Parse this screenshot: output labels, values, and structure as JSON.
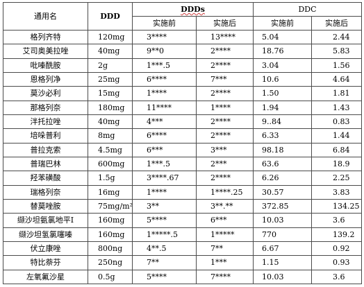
{
  "headers": {
    "name": "通用名",
    "ddd": "DDD",
    "ddds": "DDDs",
    "ddc": "DDC",
    "before": "实施前",
    "after": "实施后"
  },
  "rows": [
    {
      "name": "格列齐特",
      "ddd": "120mg",
      "ddds_before": "3****",
      "ddds_after": "13****",
      "ddc_before": "5.04",
      "ddc_after": "2.44"
    },
    {
      "name": "艾司奥美拉唑",
      "ddd": "40mg",
      "ddds_before": "9**0",
      "ddds_after": "2****",
      "ddc_before": "18.76",
      "ddc_after": "5.83"
    },
    {
      "name": "吡嗪酰胺",
      "ddd": "2g",
      "ddds_before": "1***.5",
      "ddds_after": "2****",
      "ddc_before": "3.04",
      "ddc_after": "1.56"
    },
    {
      "name": "恩格列净",
      "ddd": "25mg",
      "ddds_before": "6****",
      "ddds_after": "7***",
      "ddc_before": "10.6",
      "ddc_after": "4.64"
    },
    {
      "name": "莫沙必利",
      "ddd": "15mg",
      "ddds_before": "1****",
      "ddds_after": "2****",
      "ddc_before": "1.50",
      "ddc_after": "1.81"
    },
    {
      "name": "那格列奈",
      "ddd": "180mg",
      "ddds_before": "11****",
      "ddds_after": "1****",
      "ddc_before": "1.94",
      "ddc_after": "1.43"
    },
    {
      "name": "泮托拉唑",
      "ddd": "40mg",
      "ddds_before": "4***",
      "ddds_after": "2****",
      "ddc_before": "9..84",
      "ddc_after": "0.83"
    },
    {
      "name": "培哚普利",
      "ddd": "8mg",
      "ddds_before": "6****",
      "ddds_after": "2****",
      "ddc_before": "6.33",
      "ddc_after": "1.44"
    },
    {
      "name": "普拉克索",
      "ddd": "4.5mg",
      "ddds_before": "6***",
      "ddds_after": "3***",
      "ddc_before": "98.18",
      "ddc_after": "6.84"
    },
    {
      "name": "普瑞巴林",
      "ddd": "600mg",
      "ddds_before": "1***.5",
      "ddds_after": "2***",
      "ddc_before": "63.6",
      "ddc_after": "18.9"
    },
    {
      "name": "羟苯磺酸",
      "ddd": "1.5g",
      "ddds_before": "3****.67",
      "ddds_after": "2****",
      "ddc_before": "6.26",
      "ddc_after": "2.25"
    },
    {
      "name": "瑞格列奈",
      "ddd": "16mg",
      "ddds_before": "1****",
      "ddds_after": "1****.25",
      "ddc_before": "30.57",
      "ddc_after": "3.83"
    },
    {
      "name": "替莫唑胺",
      "ddd": "75mg/m²",
      "ddds_before": "3**",
      "ddds_after": "3**.**",
      "ddc_before": "372.85",
      "ddc_after": "134.25"
    },
    {
      "name": "缬沙坦氨氯地平I",
      "ddd": "160mg",
      "ddds_before": "5****",
      "ddds_after": "6***",
      "ddc_before": "10.03",
      "ddc_after": "3.6"
    },
    {
      "name": "缬沙坦氢氯噻嗪",
      "ddd": "160mg",
      "ddds_before": "1*****.5",
      "ddds_after": "1*****",
      "ddc_before": "770",
      "ddc_after": "139.2"
    },
    {
      "name": "伏立康唑",
      "ddd": "800ng",
      "ddds_before": "4**.5",
      "ddds_after": "7**",
      "ddc_before": "6.67",
      "ddc_after": "0.92"
    },
    {
      "name": "特比萘芬",
      "ddd": "250ng",
      "ddds_before": "7**",
      "ddds_after": "1***",
      "ddc_before": "1.15",
      "ddc_after": "0.93"
    },
    {
      "name": "左氧氟沙星",
      "ddd": "0.5g",
      "ddds_before": "5****",
      "ddds_after": "7****",
      "ddc_before": "10.03",
      "ddc_after": "3.6"
    }
  ]
}
